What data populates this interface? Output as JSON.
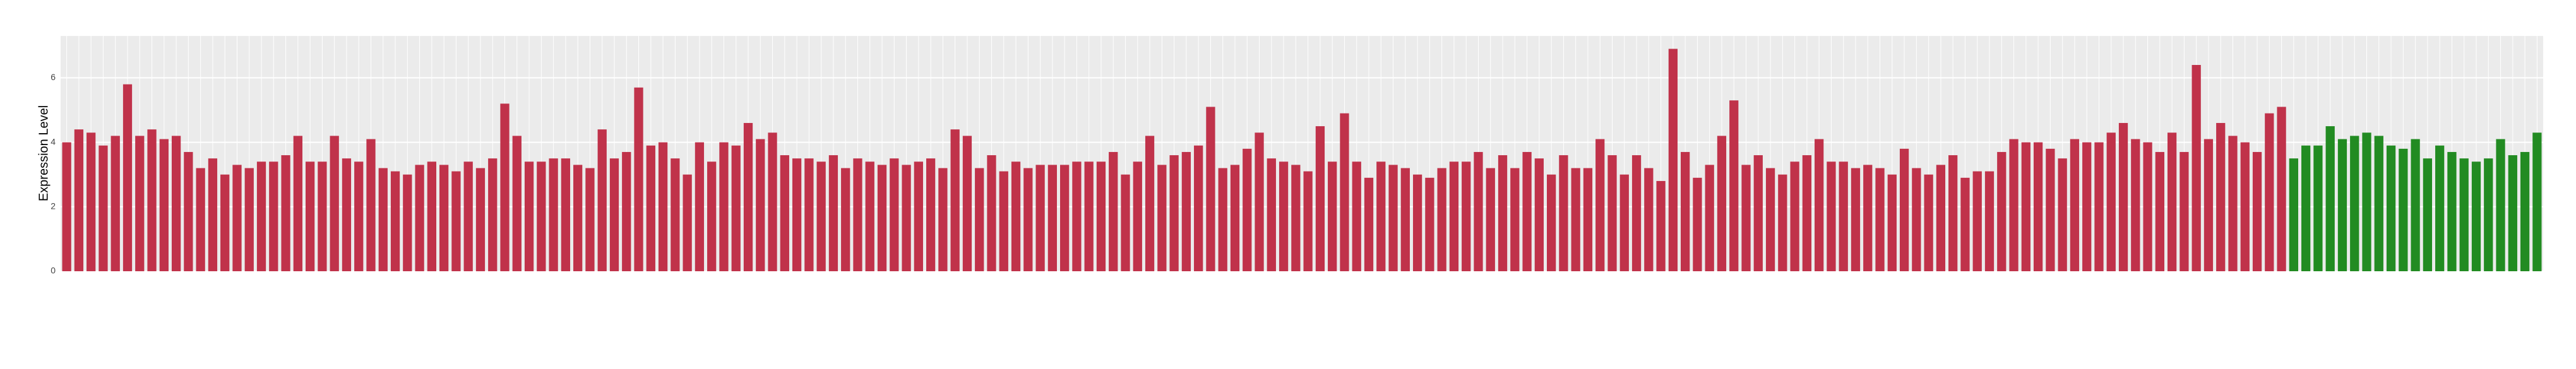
{
  "chart_data": {
    "type": "bar",
    "y_label": "Expression Level",
    "ylim": [
      0,
      7.3
    ],
    "yticks": [
      0,
      2,
      4,
      6
    ],
    "grid": true,
    "categories": [
      null,
      null,
      null,
      null,
      null,
      null,
      null,
      null,
      null,
      null,
      null,
      null,
      null,
      null,
      null,
      null,
      null,
      null,
      null,
      null,
      null,
      null,
      null,
      null,
      null,
      null,
      null,
      null,
      null,
      null,
      null,
      null,
      null,
      null,
      null,
      null,
      null,
      null,
      null,
      null,
      null,
      null,
      null,
      null,
      null,
      null,
      null,
      null,
      null,
      null,
      null,
      null,
      null,
      null,
      null,
      null,
      null,
      null,
      null,
      null,
      null,
      null,
      null,
      null,
      null,
      null,
      null,
      null,
      null,
      null,
      null,
      null,
      null,
      null,
      null,
      null,
      null,
      null,
      null,
      null,
      null,
      null,
      null,
      null,
      null,
      null,
      null,
      null,
      null,
      null,
      null,
      null,
      null,
      null,
      null,
      null,
      null,
      null,
      null,
      null,
      null,
      null,
      null,
      null,
      null,
      null,
      null,
      null,
      null,
      null,
      null,
      null,
      null,
      null,
      null,
      null,
      null,
      null,
      null,
      null,
      null,
      null,
      null,
      null,
      null,
      null,
      null,
      null,
      null,
      null,
      null,
      null,
      null,
      null,
      null,
      null,
      null,
      null,
      null,
      null,
      null,
      null,
      null,
      null,
      null,
      null,
      null,
      null,
      null,
      null,
      null,
      null,
      null,
      null,
      null,
      null,
      null,
      null,
      null,
      null,
      null,
      null,
      null,
      null,
      null,
      null,
      null,
      null,
      null,
      null,
      null,
      null,
      null,
      null,
      null,
      null,
      null,
      null,
      null,
      null,
      null,
      null,
      null,
      null,
      null,
      null,
      null,
      null,
      null,
      null,
      null,
      null,
      null,
      null,
      null,
      null,
      null,
      null,
      null,
      null,
      null,
      null,
      null,
      null
    ],
    "series": [
      {
        "color": "#c0324a",
        "values": [
          4.0,
          4.4,
          4.3,
          3.9,
          4.2,
          5.8,
          4.2,
          4.4,
          4.1,
          4.2,
          3.7,
          3.2,
          3.5,
          3.0,
          3.3,
          3.2,
          3.4,
          3.4,
          3.6,
          4.2,
          3.4,
          3.4,
          4.2,
          3.5,
          3.4,
          4.1,
          3.2,
          3.1,
          3.0,
          3.3,
          3.4,
          3.3,
          3.1,
          3.4,
          3.2,
          3.5,
          5.2,
          4.2,
          3.4,
          3.4,
          3.5,
          3.5,
          3.3,
          3.2,
          4.4,
          3.5,
          3.7,
          5.7,
          3.9,
          4.0,
          3.5,
          3.0,
          4.0,
          3.4,
          4.0,
          3.9,
          4.6,
          4.1,
          4.3,
          3.6,
          3.5,
          3.5,
          3.4,
          3.6,
          3.2,
          3.5,
          3.4,
          3.3,
          3.5,
          3.3,
          3.4,
          3.5,
          3.2,
          4.4,
          4.2,
          3.2,
          3.6,
          3.1,
          3.4,
          3.2,
          3.3,
          3.3,
          3.3,
          3.4,
          3.4,
          3.4,
          3.7,
          3.0,
          3.4,
          4.2,
          3.3,
          3.6,
          3.7,
          3.9,
          5.1,
          3.2,
          3.3,
          3.8,
          4.3,
          3.5,
          3.4,
          3.3,
          3.1,
          4.5,
          3.4,
          4.9,
          3.4,
          2.9,
          3.4,
          3.3,
          3.2,
          3.0,
          2.9,
          3.2,
          3.4,
          3.4,
          3.7,
          3.2,
          3.6,
          3.2,
          3.7,
          3.5,
          3.0,
          3.6,
          3.2,
          3.2,
          4.1,
          3.6,
          3.0,
          3.6,
          3.2,
          2.8,
          6.9,
          3.7,
          2.9,
          3.3,
          4.2,
          5.3,
          3.3,
          3.6,
          3.2,
          3.0,
          3.4,
          3.6,
          4.1,
          3.4,
          3.4,
          3.2,
          3.3,
          3.2,
          3.0,
          3.8,
          3.2,
          3.0,
          3.3,
          3.6,
          2.9,
          3.1,
          3.1,
          3.7,
          4.1,
          4.0,
          4.0,
          3.8,
          3.5,
          4.1,
          4.0,
          4.0,
          4.3,
          4.6,
          4.1,
          4.0,
          3.7,
          4.3,
          3.7,
          6.4,
          4.1,
          4.6,
          4.2,
          4.0,
          3.7,
          4.9,
          5.1,
          null,
          null,
          null,
          null,
          null,
          null,
          null,
          null,
          null,
          null,
          null,
          null,
          null,
          null,
          null,
          null,
          null,
          null,
          null,
          null,
          null
        ]
      },
      {
        "color": "#228b22",
        "values": [
          null,
          null,
          null,
          null,
          null,
          null,
          null,
          null,
          null,
          null,
          null,
          null,
          null,
          null,
          null,
          null,
          null,
          null,
          null,
          null,
          null,
          null,
          null,
          null,
          null,
          null,
          null,
          null,
          null,
          null,
          null,
          null,
          null,
          null,
          null,
          null,
          null,
          null,
          null,
          null,
          null,
          null,
          null,
          null,
          null,
          null,
          null,
          null,
          null,
          null,
          null,
          null,
          null,
          null,
          null,
          null,
          null,
          null,
          null,
          null,
          null,
          null,
          null,
          null,
          null,
          null,
          null,
          null,
          null,
          null,
          null,
          null,
          null,
          null,
          null,
          null,
          null,
          null,
          null,
          null,
          null,
          null,
          null,
          null,
          null,
          null,
          null,
          null,
          null,
          null,
          null,
          null,
          null,
          null,
          null,
          null,
          null,
          null,
          null,
          null,
          null,
          null,
          null,
          null,
          null,
          null,
          null,
          null,
          null,
          null,
          null,
          null,
          null,
          null,
          null,
          null,
          null,
          null,
          null,
          null,
          null,
          null,
          null,
          null,
          null,
          null,
          null,
          null,
          null,
          null,
          null,
          null,
          null,
          null,
          null,
          null,
          null,
          null,
          null,
          null,
          null,
          null,
          null,
          null,
          null,
          null,
          null,
          null,
          null,
          null,
          null,
          null,
          null,
          null,
          null,
          null,
          null,
          null,
          null,
          null,
          null,
          null,
          null,
          null,
          null,
          null,
          null,
          null,
          null,
          null,
          null,
          null,
          null,
          null,
          null,
          null,
          null,
          null,
          null,
          null,
          null,
          null,
          null,
          3.5,
          3.9,
          3.9,
          4.5,
          4.1,
          4.2,
          4.3,
          4.2,
          3.9,
          3.8,
          4.1,
          3.5,
          3.9,
          3.7,
          3.5,
          3.4,
          3.5,
          4.1,
          3.6,
          3.7,
          4.3
        ]
      }
    ]
  }
}
